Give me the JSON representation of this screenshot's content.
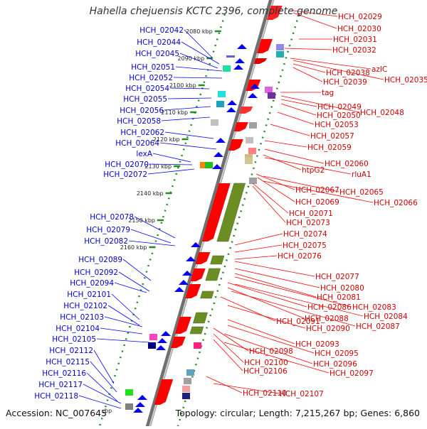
{
  "title": "Hahella chejuensis KCTC 2396, complete genome",
  "accession_text": "Accession: NC_007645",
  "topology_text": "Topology: circular; Length: 7,215,267 bp; Genes: 6,860",
  "bp_suffix": "bp",
  "kbp_ticks": [
    {
      "label": "2080 kbp",
      "kbp": 2080
    },
    {
      "label": "2090 kbp",
      "kbp": 2090
    },
    {
      "label": "2100 kbp",
      "kbp": 2100
    },
    {
      "label": "2110 kbp",
      "kbp": 2110
    },
    {
      "label": "2120 kbp",
      "kbp": 2120
    },
    {
      "label": "2130 kbp",
      "kbp": 2130
    },
    {
      "label": "2140 kbp",
      "kbp": 2140
    },
    {
      "label": "2150 kbp",
      "kbp": 2150
    },
    {
      "label": "2160 kbp",
      "kbp": 2160
    }
  ],
  "colors": {
    "forward": "#ff0000",
    "reverse": "#0000ff",
    "olive": "#6b8e23",
    "backbone": "#888888",
    "tick_dot": "#228b22"
  },
  "left_labels": [
    "HCH_02042",
    "HCH_02044",
    "HCH_02045",
    "HCH_02051",
    "HCH_02052",
    "HCH_02054",
    "HCH_02055",
    "HCH_02056",
    "HCH_02058",
    "HCH_02062",
    "HCH_02064",
    "lexA",
    "HCH_02070",
    "HCH_02072",
    "HCH_02078",
    "HCH_02079",
    "HCH_02082",
    "HCH_02089",
    "HCH_02092",
    "HCH_02094",
    "HCH_02101",
    "HCH_02102",
    "HCH_02103",
    "HCH_02104",
    "HCH_02105",
    "HCH_02112",
    "HCH_02115",
    "HCH_02116",
    "HCH_02117",
    "HCH_02118"
  ],
  "right_labels": [
    "HCH_02029",
    "HCH_02030",
    "HCH_02031",
    "HCH_02032",
    "azlC",
    "HCH_02038",
    "HCH_02035",
    "HCH_02039",
    "tag",
    "HCH_02049",
    "HCH_02048",
    "HCH_02050",
    "HCH_02053",
    "HCH_02057",
    "HCH_02059",
    "HCH_02060",
    "htpG2",
    "rluA1",
    "HCH_02067",
    "HCH_02065",
    "HCH_02069",
    "HCH_02066",
    "HCH_02071",
    "HCH_02073",
    "HCH_02074",
    "HCH_02075",
    "HCH_02076",
    "HCH_02077",
    "HCH_02080",
    "HCH_02081",
    "HCH_02083",
    "HCH_02086",
    "HCH_02084",
    "HCH_02088",
    "HCH_02087",
    "HCH_02091",
    "HCH_02090",
    "HCH_02093",
    "HCH_02098",
    "HCH_02095",
    "HCH_02100",
    "HCH_02096",
    "HCH_02106",
    "HCH_02097",
    "HCH_02110",
    "HCH_02107"
  ]
}
